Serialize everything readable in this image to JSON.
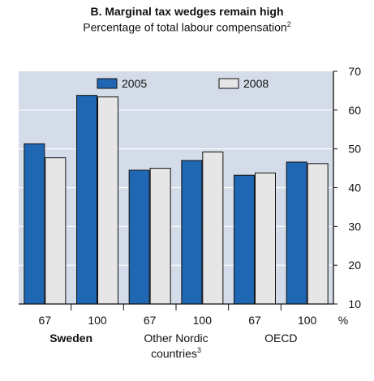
{
  "chart_data": {
    "type": "bar",
    "title": "B. Marginal tax wedges remain high",
    "subtitle": "Percentage of total labour compensation",
    "subtitle_note": "2",
    "unit": "%",
    "ylim": [
      10,
      70
    ],
    "yticks": [
      10,
      20,
      30,
      40,
      50,
      60,
      70
    ],
    "grid": true,
    "legend_position": "top",
    "categories": [
      "67",
      "100",
      "67",
      "100",
      "67",
      "100"
    ],
    "groups": [
      {
        "label": "Sweden",
        "note": "",
        "span": [
          0,
          1
        ],
        "bold": true
      },
      {
        "label": "Other Nordic countries",
        "line1": "Other Nordic",
        "line2": "countries",
        "note": "3",
        "span": [
          2,
          3
        ],
        "bold": false
      },
      {
        "label": "OECD",
        "note": "",
        "span": [
          4,
          5
        ],
        "bold": false
      }
    ],
    "series": [
      {
        "name": "2005",
        "color": "#1f66b3",
        "values": [
          51.3,
          63.8,
          44.5,
          47.0,
          43.2,
          46.6
        ]
      },
      {
        "name": "2008",
        "color": "#e6e6e6",
        "values": [
          47.7,
          63.4,
          45.0,
          49.2,
          43.8,
          46.2
        ]
      }
    ],
    "plot_background": "#d3dce8"
  }
}
